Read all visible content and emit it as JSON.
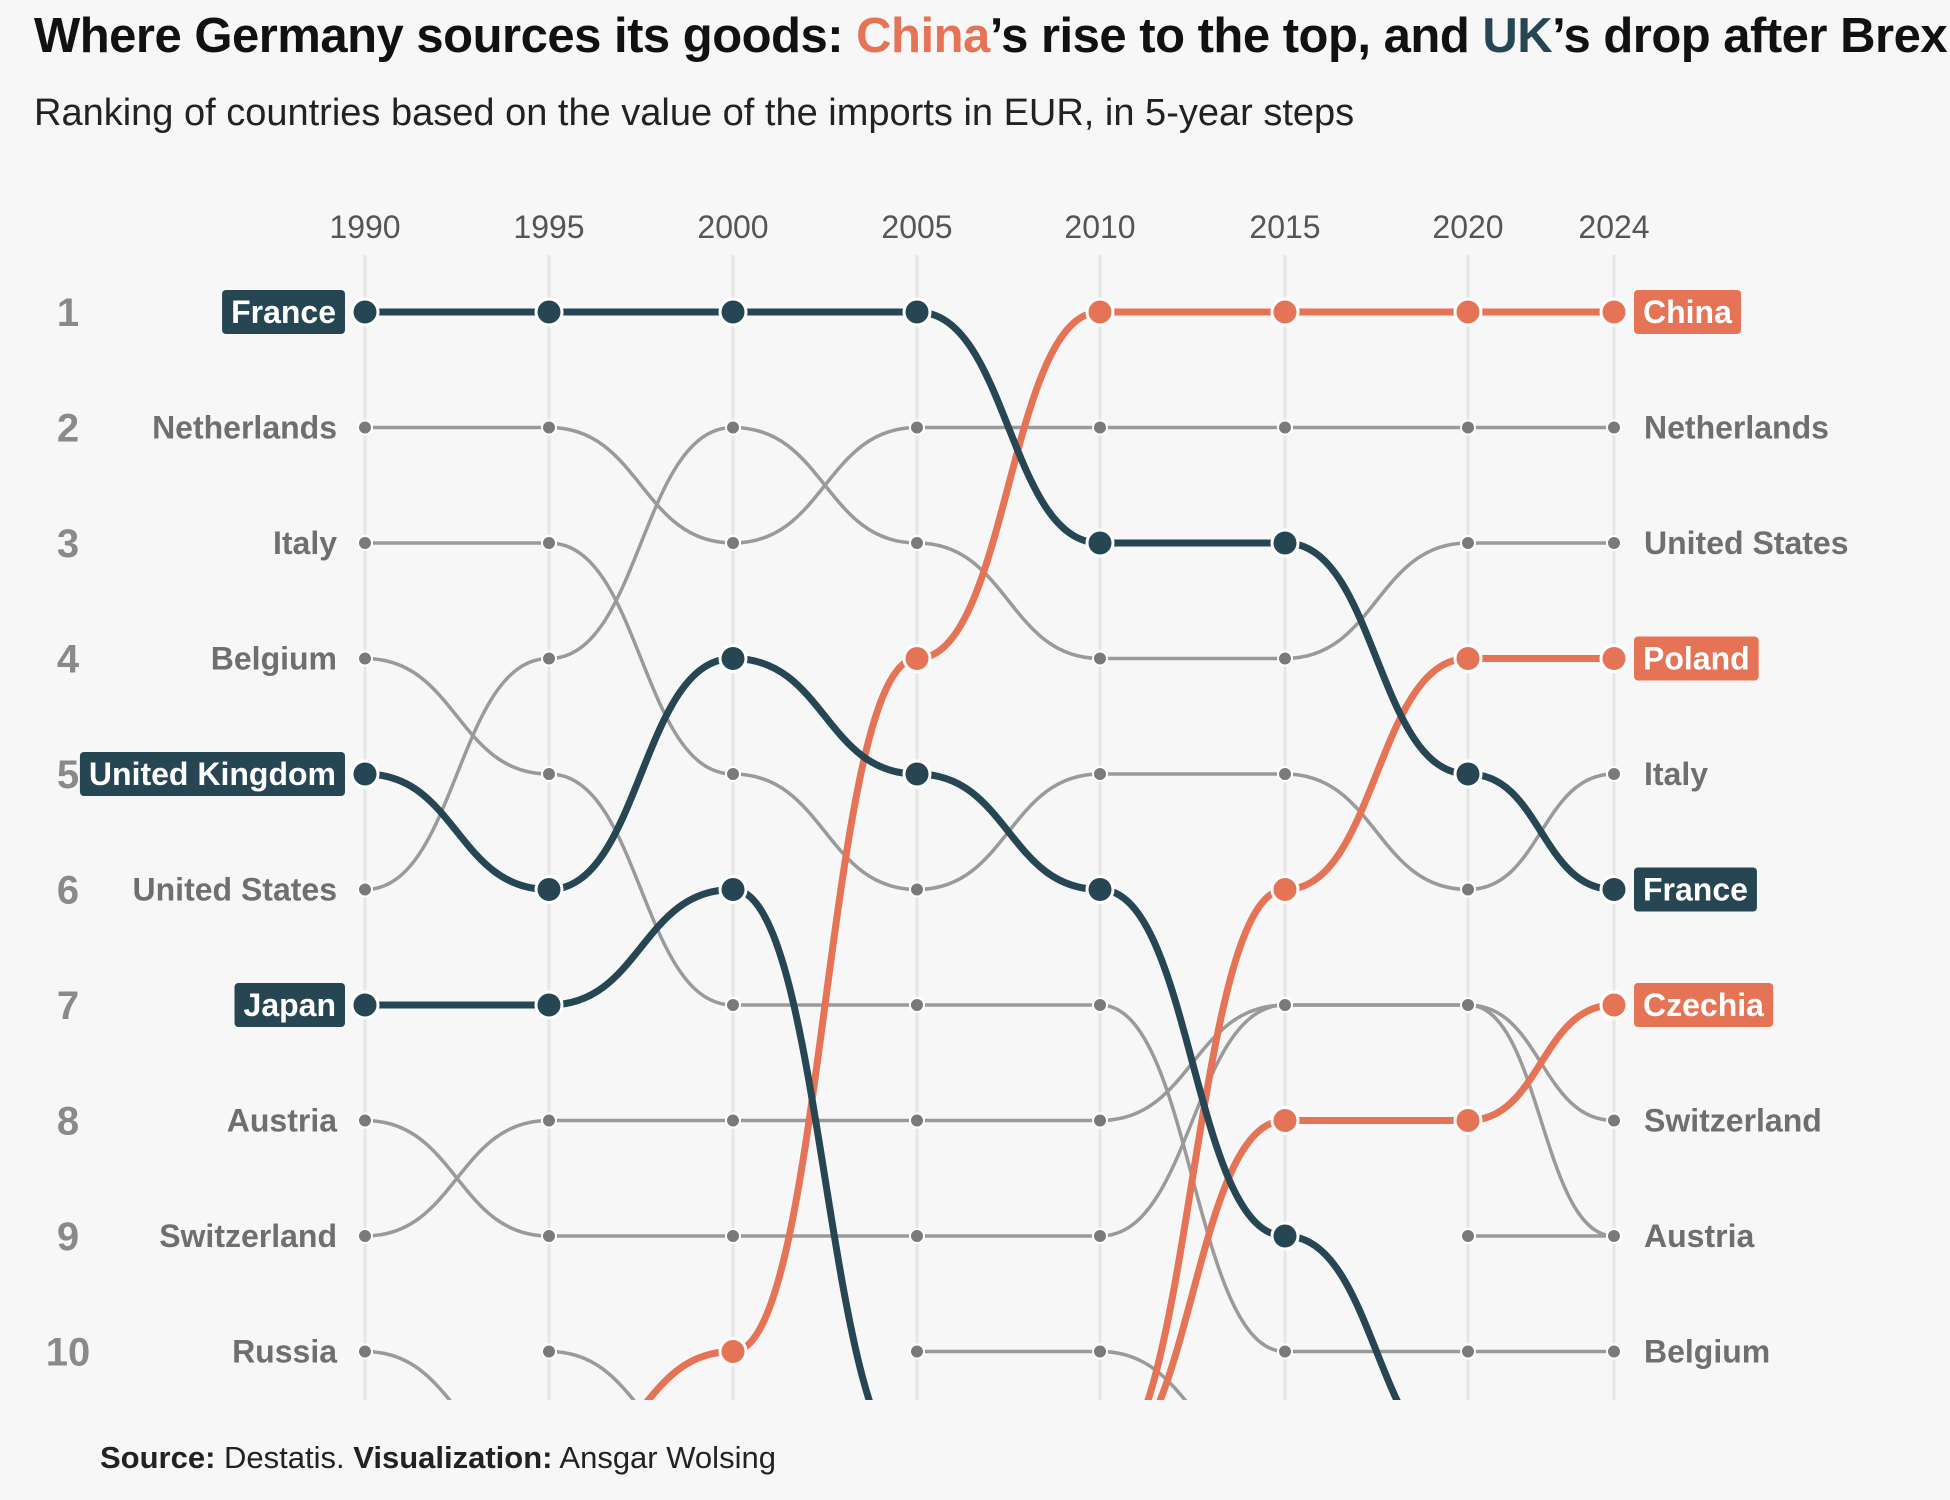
{
  "title": {
    "prefix": "Where Germany sources its goods: ",
    "china": "China",
    "middle": "’s rise to the top, and ",
    "uk": "UK",
    "suffix": "’s drop after Brexit."
  },
  "subtitle": "Ranking of countries based on the value of the imports in EUR, in 5-year steps",
  "caption": {
    "source_label": "Source:",
    "source_text": " Destatis. ",
    "viz_label": "Visualization:",
    "viz_text": " Ansgar Wolsing"
  },
  "colors": {
    "highlight_orange": "#E57356",
    "highlight_dark": "#264653",
    "other_line": "#9a9a9a",
    "other_dot": "#7a7a7a",
    "rank_text": "#8a8a8a",
    "label_text": "#6f6f6f",
    "grid": "#e6e6e6"
  },
  "chart_data": {
    "type": "bump",
    "title": "Where Germany sources its goods: China’s rise to the top, and UK’s drop after Brexit.",
    "subtitle": "Ranking of countries based on the value of the imports in EUR, in 5-year steps",
    "x": [
      "1990",
      "1995",
      "2000",
      "2005",
      "2010",
      "2015",
      "2020",
      "2024"
    ],
    "ranks_shown": [
      1,
      2,
      3,
      4,
      5,
      6,
      7,
      8,
      9,
      10
    ],
    "y_reversed": true,
    "grid": "vertical",
    "series": [
      {
        "name": "France",
        "highlight": "dark",
        "values": [
          1,
          1,
          1,
          1,
          3,
          3,
          5,
          6
        ]
      },
      {
        "name": "United Kingdom",
        "highlight": "dark",
        "values": [
          5,
          6,
          4,
          5,
          6,
          9,
          11,
          null
        ]
      },
      {
        "name": "Japan",
        "highlight": "dark",
        "values": [
          7,
          7,
          6,
          11,
          null,
          null,
          null,
          null
        ]
      },
      {
        "name": "China",
        "highlight": "orange",
        "values": [
          null,
          11,
          10,
          4,
          1,
          1,
          1,
          1
        ]
      },
      {
        "name": "Poland",
        "highlight": "orange",
        "values": [
          null,
          null,
          null,
          null,
          11,
          6,
          4,
          4
        ]
      },
      {
        "name": "Czechia",
        "highlight": "orange",
        "values": [
          null,
          null,
          null,
          null,
          11,
          8,
          8,
          7
        ]
      },
      {
        "name": "Netherlands",
        "highlight": "none",
        "values": [
          2,
          2,
          3,
          2,
          2,
          2,
          2,
          2
        ]
      },
      {
        "name": "Italy",
        "highlight": "none",
        "values": [
          3,
          3,
          5,
          6,
          5,
          5,
          6,
          5
        ]
      },
      {
        "name": "Belgium",
        "highlight": "none",
        "values": [
          4,
          5,
          7,
          7,
          7,
          10,
          10,
          10
        ]
      },
      {
        "name": "United States",
        "highlight": "none",
        "values": [
          6,
          4,
          2,
          3,
          4,
          4,
          3,
          3
        ]
      },
      {
        "name": "Austria",
        "highlight": "none",
        "values": [
          8,
          9,
          9,
          9,
          9,
          7,
          7,
          9
        ]
      },
      {
        "name": "Switzerland",
        "highlight": "none",
        "values": [
          9,
          8,
          8,
          8,
          8,
          7,
          7,
          8
        ]
      },
      {
        "name": "Russia",
        "highlight": "none",
        "values": [
          10,
          11,
          null,
          null,
          null,
          null,
          null,
          null
        ]
      },
      {
        "name": "",
        "highlight": "none",
        "values": [
          null,
          10,
          11,
          null,
          null,
          null,
          null,
          null
        ]
      },
      {
        "name": "",
        "highlight": "none",
        "values": [
          null,
          null,
          null,
          10,
          10,
          11,
          null,
          null
        ]
      },
      {
        "name": "",
        "highlight": "none",
        "values": [
          null,
          null,
          null,
          null,
          null,
          null,
          11,
          null
        ]
      },
      {
        "name": "",
        "highlight": "none",
        "values": [
          null,
          null,
          null,
          null,
          null,
          null,
          9,
          9
        ]
      }
    ]
  }
}
